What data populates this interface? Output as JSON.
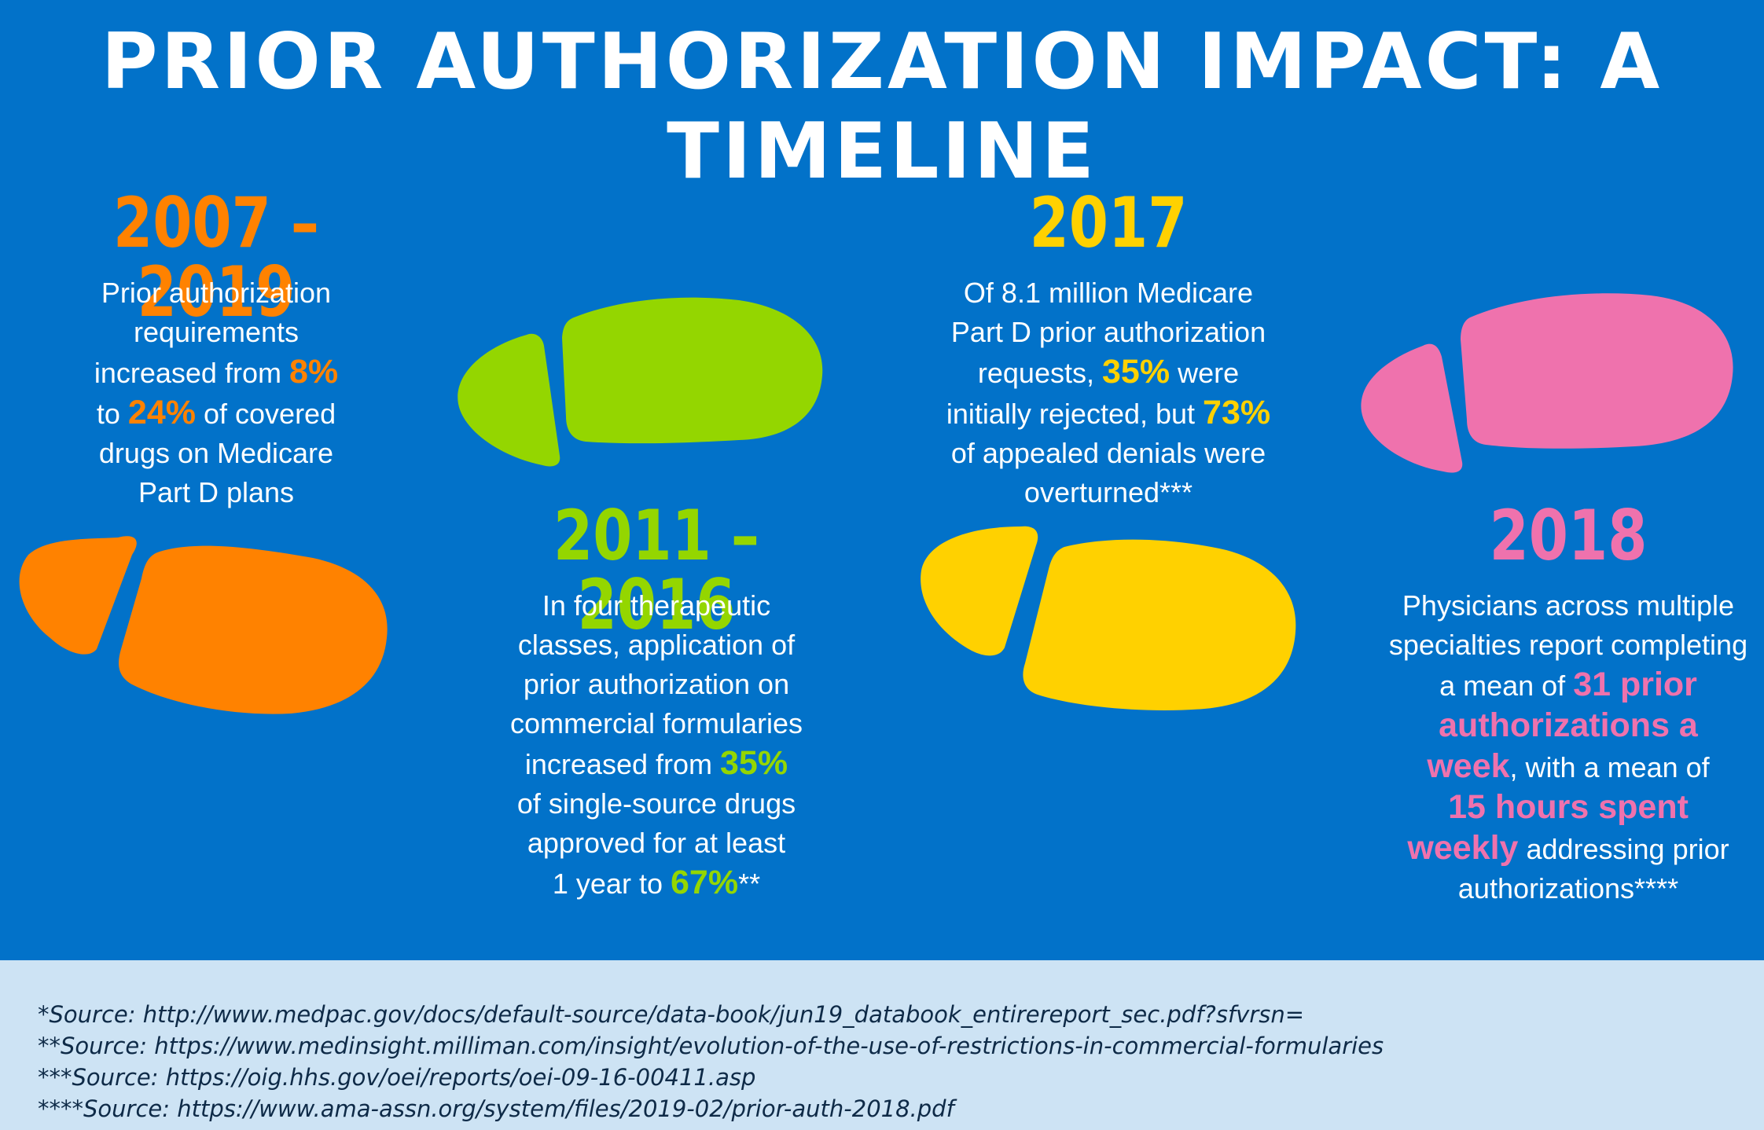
{
  "title": "PRIOR AUTHORIZATION IMPACT: A TIMELINE",
  "colors": {
    "background": "#0272c9",
    "orange": "#ff8200",
    "green": "#94d600",
    "yellow": "#ffd100",
    "pink": "#ef72ad",
    "footer": "#cde3f4"
  },
  "events": {
    "e1": {
      "year": "2007 – 2019",
      "t1": "Prior authorization",
      "t2": "requirements",
      "t3a": "increased from ",
      "h1": "8%",
      "t4a": "to ",
      "h2": "24%",
      "t4b": " of covered",
      "t5": "drugs on Medicare",
      "t6": "Part D plans"
    },
    "e2": {
      "year": "2011 – 2016",
      "t1": "In four therapeutic",
      "t2": "classes, application of",
      "t3": "prior authorization on",
      "t4": "commercial formularies",
      "t5a": "increased from ",
      "h1": "35%",
      "t6": "of single-source drugs",
      "t7": "approved for at least",
      "t8a": "1 year to ",
      "h2": "67%",
      "t8b": "**"
    },
    "e3": {
      "year": "2017",
      "t1": "Of 8.1 million Medicare",
      "t2": "Part D prior authorization",
      "t3a": "requests, ",
      "h1": "35%",
      "t3b": " were",
      "t4a": "initially rejected, but ",
      "h2": "73%",
      "t5": "of appealed denials were",
      "t6": "overturned***"
    },
    "e4": {
      "year": "2018",
      "t1": "Physicians across multiple",
      "t2": "specialties report completing",
      "t3a": "a mean of ",
      "h1a": "31 prior",
      "h1b": "authorizations a",
      "h1c": "week",
      "t5b": ", with a mean of",
      "h2a": "15 hours spent",
      "h2b": "weekly",
      "t7b": " addressing prior",
      "t8": "authorizations****"
    }
  },
  "sources": [
    "*Source: http://www.medpac.gov/docs/default-source/data-book/jun19_databook_entirereport_sec.pdf?sfvrsn=",
    "**Source: https://www.medinsight.milliman.com/insight/evolution-of-the-use-of-restrictions-in-commercial-formularies",
    "***Source: https://oig.hhs.gov/oei/reports/oei-09-16-00411.asp",
    "****Source: https://www.ama-assn.org/system/files/2019-02/prior-auth-2018.pdf"
  ]
}
